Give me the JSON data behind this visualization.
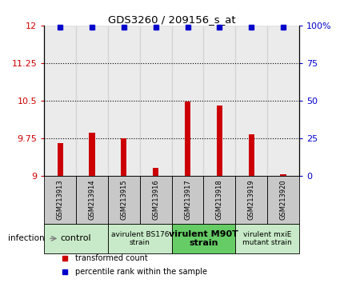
{
  "title": "GDS3260 / 209156_s_at",
  "samples": [
    "GSM213913",
    "GSM213914",
    "GSM213915",
    "GSM213916",
    "GSM213917",
    "GSM213918",
    "GSM213919",
    "GSM213920"
  ],
  "red_values": [
    9.65,
    9.85,
    9.75,
    9.15,
    10.48,
    10.4,
    9.82,
    9.02
  ],
  "blue_values": [
    99,
    99,
    99,
    99,
    99,
    99,
    99,
    99
  ],
  "ylim_left": [
    9,
    12
  ],
  "ylim_right": [
    0,
    100
  ],
  "yticks_left": [
    9,
    9.75,
    10.5,
    11.25,
    12
  ],
  "yticks_right": [
    0,
    25,
    50,
    75,
    100
  ],
  "groups": [
    {
      "label": "control",
      "start": 0,
      "end": 2,
      "color": "#c8eac8",
      "fontsize": 8,
      "bold": false
    },
    {
      "label": "avirulent BS176\nstrain",
      "start": 2,
      "end": 4,
      "color": "#c8eac8",
      "fontsize": 6.5,
      "bold": false
    },
    {
      "label": "virulent M90T\nstrain",
      "start": 4,
      "end": 6,
      "color": "#66cc66",
      "fontsize": 8,
      "bold": true
    },
    {
      "label": "virulent mxiE\nmutant strain",
      "start": 6,
      "end": 8,
      "color": "#c8eac8",
      "fontsize": 6.5,
      "bold": false
    }
  ],
  "bar_color": "#cc0000",
  "dot_color": "#0000cc",
  "left_tick_color": "#cc0000",
  "right_tick_color": "#0000cc",
  "legend_items": [
    {
      "color": "#cc0000",
      "label": "transformed count"
    },
    {
      "color": "#0000cc",
      "label": "percentile rank within the sample"
    }
  ],
  "infection_label": "infection",
  "sample_area_color": "#c8c8c8",
  "background_color": "#ffffff",
  "plot_bg": "#ffffff"
}
